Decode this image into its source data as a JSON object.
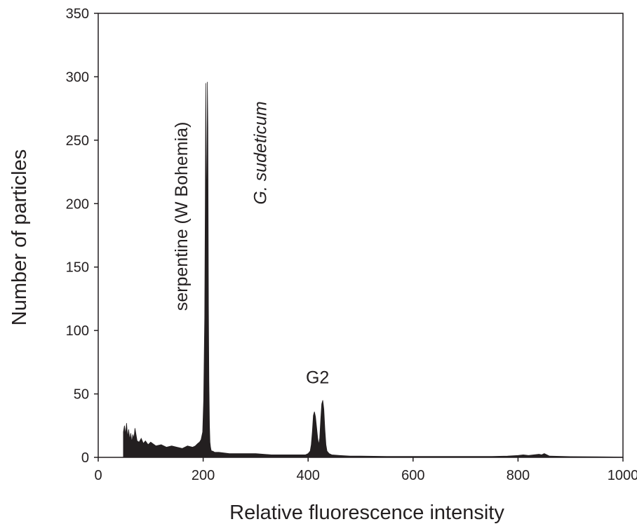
{
  "chart_data": {
    "type": "area",
    "xlabel": "Relative fluorescence intensity",
    "ylabel": "Number of particles",
    "xlim": [
      0,
      1000
    ],
    "ylim": [
      0,
      350
    ],
    "xticks": [
      0,
      200,
      400,
      600,
      800,
      1000
    ],
    "yticks": [
      0,
      50,
      100,
      150,
      200,
      250,
      300,
      350
    ],
    "grid": false,
    "fill_color": "#231f20",
    "axis_color": "#231f20",
    "series": [
      {
        "x": [
          48,
          50,
          52,
          54,
          56,
          58,
          60,
          62,
          64,
          66,
          68,
          70,
          74,
          78,
          82,
          86,
          90,
          95,
          100,
          110,
          120,
          130,
          140,
          150,
          160,
          170,
          180,
          185,
          190,
          193,
          196,
          199,
          201,
          203,
          204,
          205,
          206,
          207,
          208,
          209,
          210,
          211,
          212,
          213,
          214,
          215,
          216,
          218,
          222,
          230,
          250,
          270,
          300,
          330,
          360,
          380,
          395,
          400,
          404,
          406,
          408,
          410,
          412,
          414,
          416,
          418,
          420,
          422,
          424,
          426,
          428,
          430,
          432,
          434,
          436,
          440,
          445,
          460,
          480,
          500,
          550,
          600,
          650,
          700,
          750,
          780,
          800,
          810,
          820,
          830,
          840,
          845,
          850,
          855,
          860,
          900,
          950,
          1000
        ],
        "y": [
          20,
          25,
          18,
          27,
          16,
          22,
          14,
          19,
          12,
          18,
          15,
          23,
          13,
          12,
          15,
          11,
          13,
          10,
          12,
          9,
          10,
          8,
          9,
          8,
          7,
          9,
          8,
          9,
          11,
          12,
          14,
          20,
          45,
          110,
          200,
          295,
          230,
          180,
          296,
          260,
          120,
          60,
          25,
          12,
          8,
          6,
          5,
          5,
          4,
          4,
          3,
          3,
          3,
          2,
          2,
          2,
          2,
          3,
          5,
          10,
          20,
          33,
          36,
          32,
          24,
          16,
          10,
          15,
          30,
          42,
          45,
          38,
          22,
          10,
          5,
          3,
          2,
          1.5,
          1,
          1,
          0.8,
          0.8,
          0.7,
          0.7,
          0.8,
          1,
          1.5,
          2,
          1.5,
          2,
          2.5,
          2,
          3,
          2,
          1,
          0.6,
          0.5,
          0.3
        ]
      }
    ],
    "annotations": [
      {
        "text": "serpentine (W Bohemia)",
        "x": 150,
        "y": 190,
        "rotation": -90,
        "style": "normal"
      },
      {
        "text": "G. sudeticum",
        "x": 300,
        "y": 240,
        "rotation": -90,
        "style": "italic"
      },
      {
        "text": "G2",
        "x": 418,
        "y": 55,
        "rotation": 0,
        "style": "normal"
      }
    ]
  }
}
